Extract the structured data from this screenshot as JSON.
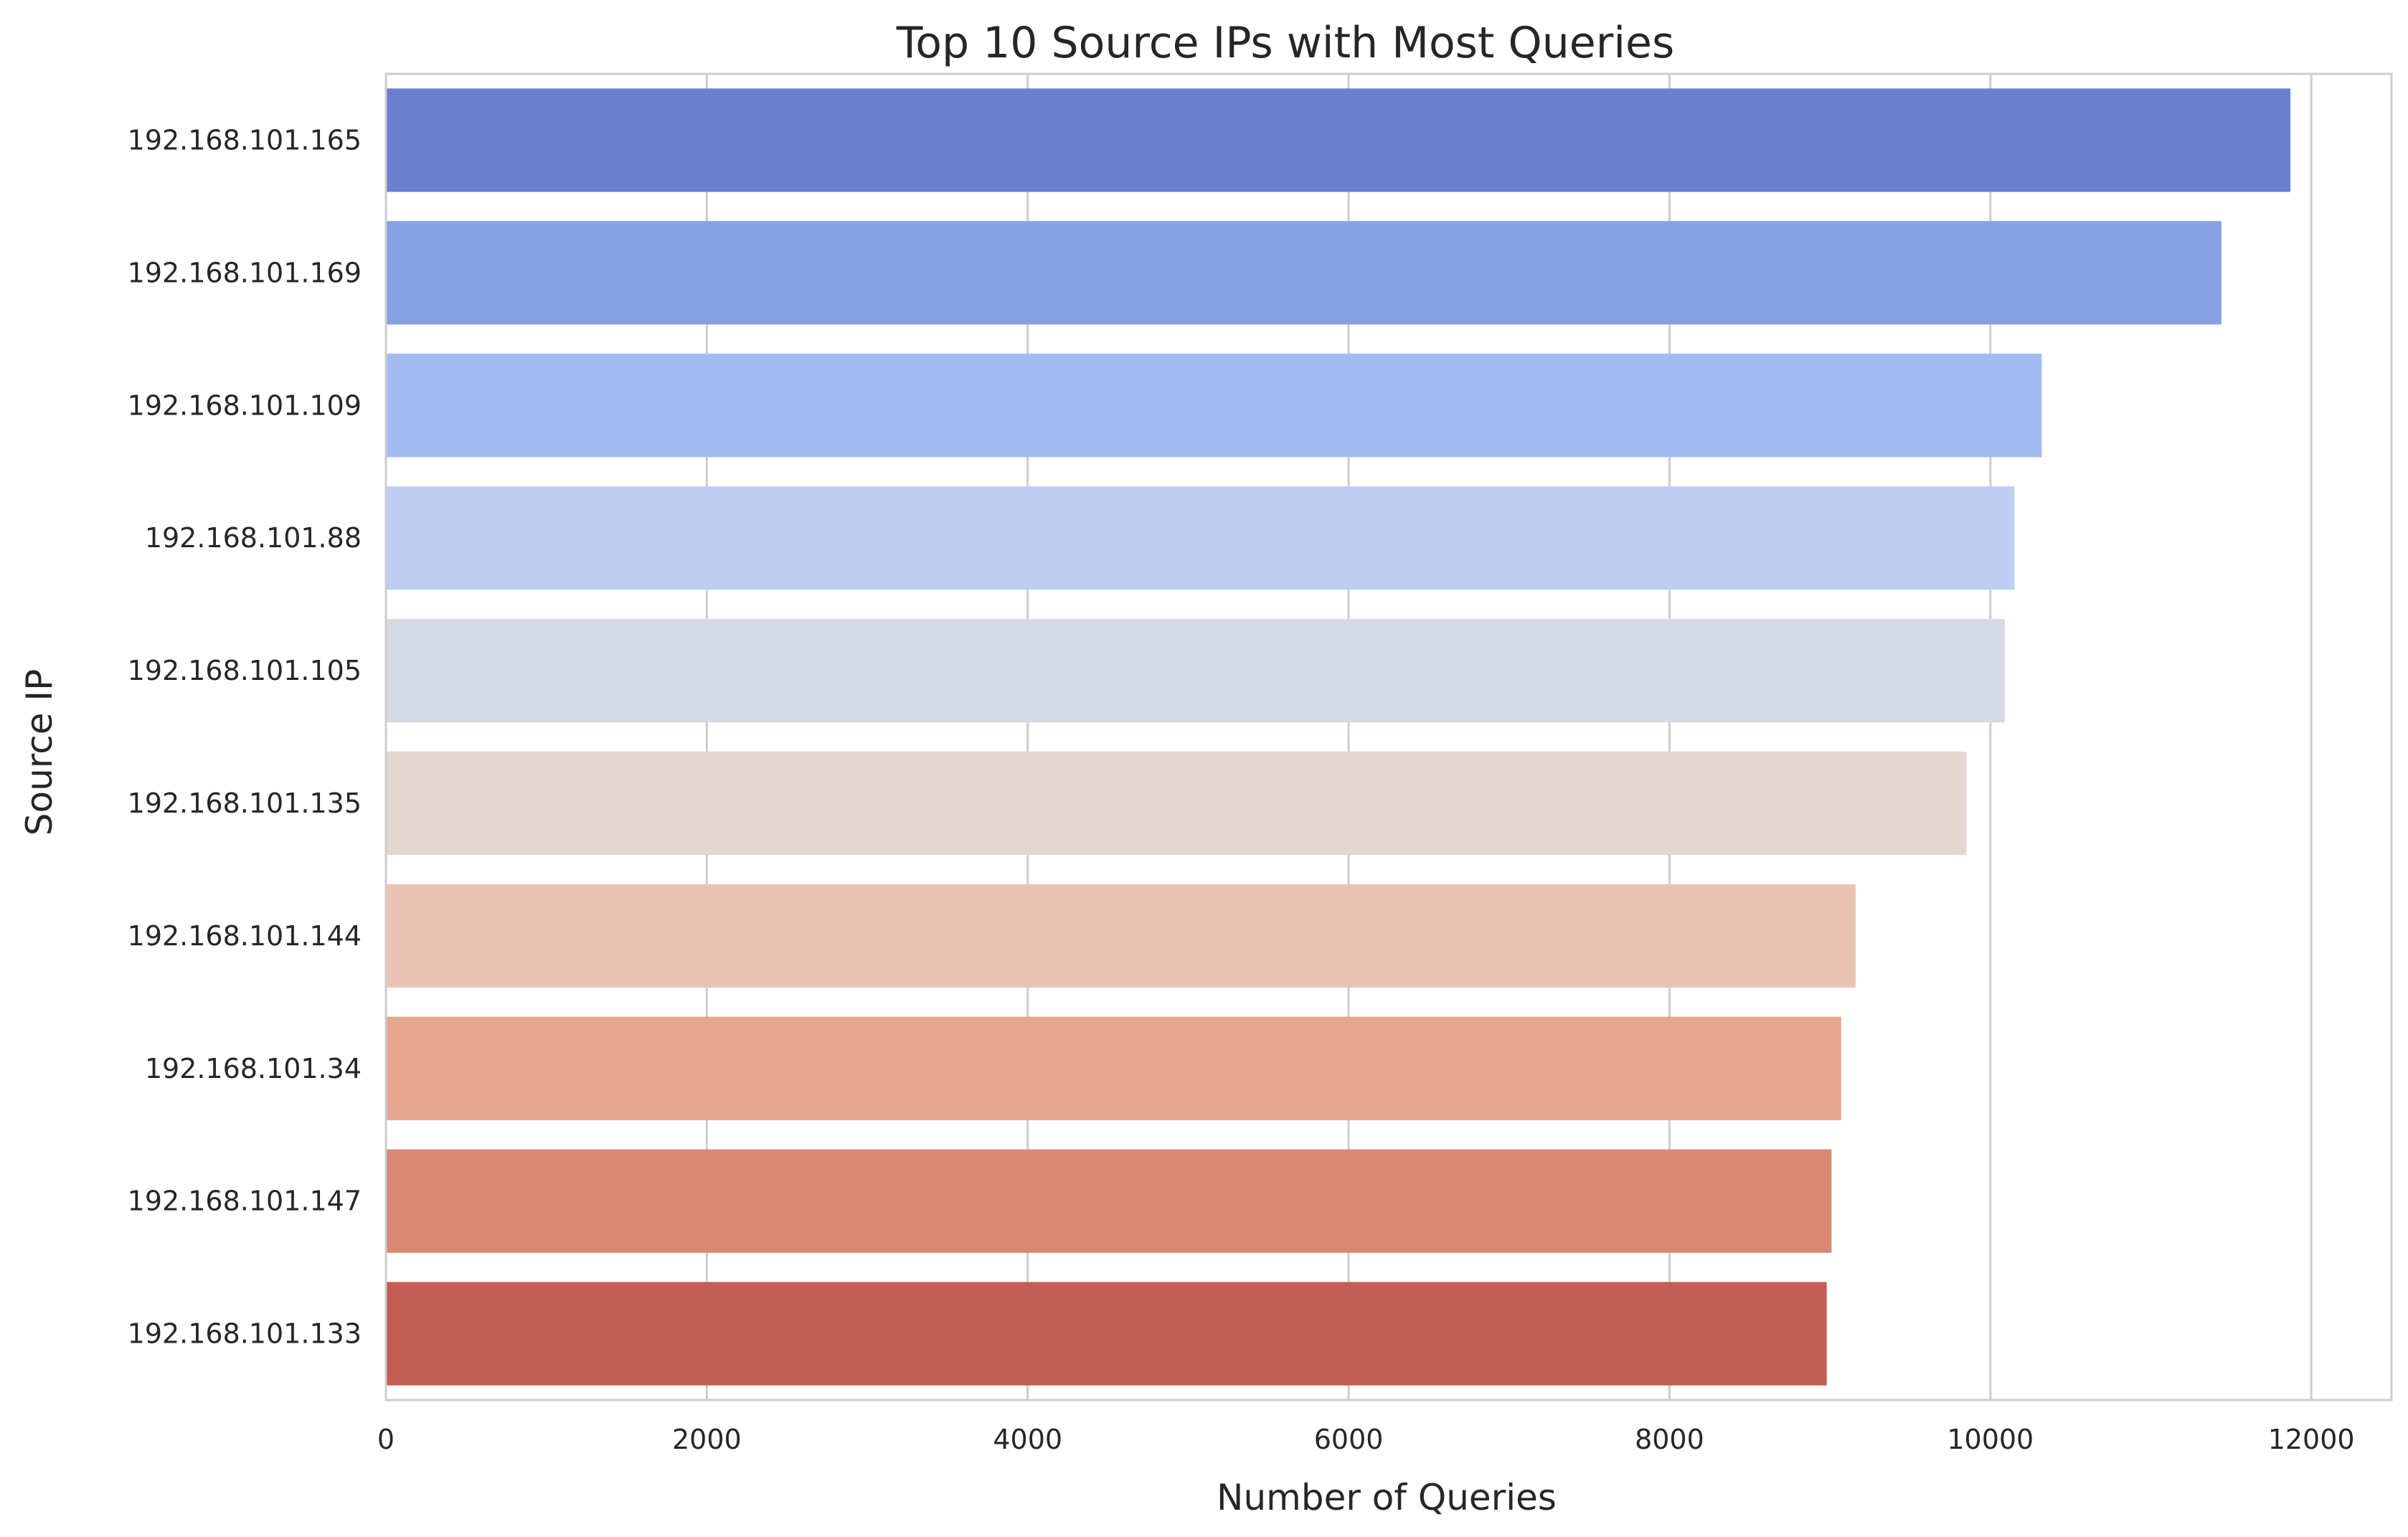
{
  "chart_data": {
    "type": "bar",
    "orientation": "horizontal",
    "title": "Top 10 Source IPs with Most Queries",
    "xlabel": "Number of Queries",
    "ylabel": "Source IP",
    "xlim": [
      0,
      12500
    ],
    "x_ticks": [
      0,
      2000,
      4000,
      6000,
      8000,
      10000,
      12000
    ],
    "x_tick_labels": [
      "0",
      "2000",
      "4000",
      "6000",
      "8000",
      "10000",
      "12000"
    ],
    "grid": true,
    "categories": [
      "192.168.101.165",
      "192.168.101.169",
      "192.168.101.109",
      "192.168.101.88",
      "192.168.101.105",
      "192.168.101.135",
      "192.168.101.144",
      "192.168.101.34",
      "192.168.101.147",
      "192.168.101.133"
    ],
    "values": [
      11870,
      11440,
      10320,
      10150,
      10090,
      9850,
      9160,
      9070,
      9010,
      8980
    ],
    "colors": [
      "#6a7fd0",
      "#87a0e4",
      "#a2bbf2",
      "#bdcff1",
      "#d4dbe6",
      "#e3d7cf",
      "#eac4b2",
      "#e6a690",
      "#d98672",
      "#c25e53"
    ]
  }
}
